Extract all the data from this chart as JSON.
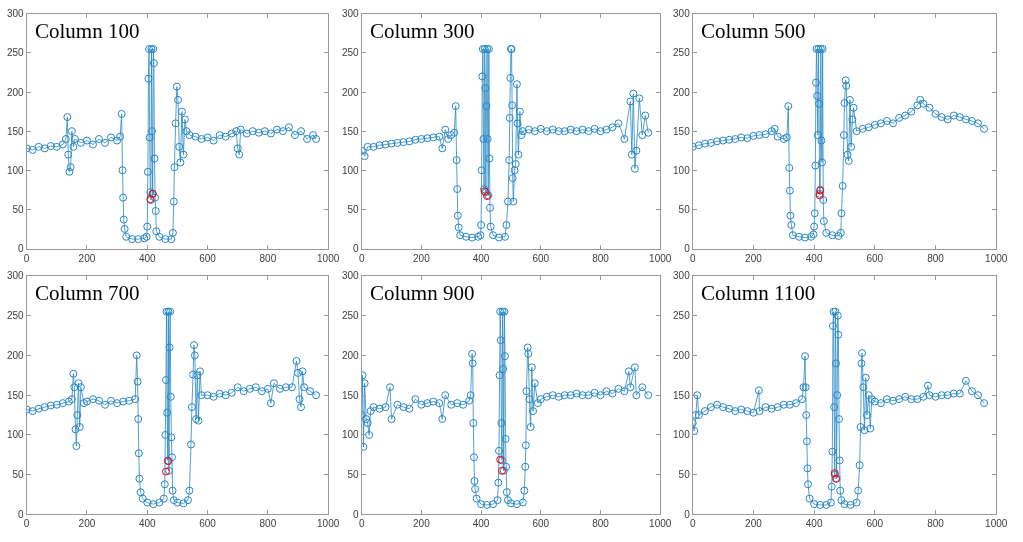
{
  "chart_data": [
    {
      "type": "line",
      "title": "Column 100",
      "xlim": [
        0,
        1000
      ],
      "xticks": [
        0,
        200,
        400,
        600,
        800,
        1000
      ],
      "ylim": [
        0,
        300
      ],
      "yticks": [
        0,
        50,
        100,
        150,
        200,
        250,
        300
      ],
      "marker": "circle",
      "series": [
        {
          "color": "#0072bd",
          "x": [
            0,
            20,
            40,
            60,
            80,
            100,
            120,
            130,
            135,
            138,
            142,
            146,
            150,
            155,
            160,
            180,
            200,
            220,
            240,
            260,
            280,
            300,
            310,
            315,
            318,
            320,
            322,
            325,
            330,
            350,
            370,
            390,
            398,
            400,
            402,
            404,
            406,
            408,
            410,
            412,
            414,
            416,
            418,
            420,
            422,
            424,
            426,
            428,
            430,
            440,
            460,
            480,
            485,
            488,
            490,
            494,
            498,
            502,
            506,
            510,
            515,
            520,
            525,
            530,
            540,
            560,
            580,
            600,
            620,
            640,
            660,
            680,
            695,
            700,
            705,
            710,
            730,
            750,
            770,
            790,
            810,
            830,
            850,
            870,
            890,
            910,
            930,
            950,
            960
          ],
          "values": [
            128,
            126,
            130,
            128,
            131,
            130,
            133,
            140,
            168,
            120,
            98,
            104,
            150,
            130,
            140,
            135,
            138,
            133,
            140,
            135,
            142,
            138,
            143,
            172,
            100,
            65,
            37,
            25,
            15,
            12,
            12,
            13,
            15,
            28,
            98,
            217,
            255,
            142,
            72,
            62,
            255,
            150,
            70,
            255,
            237,
            115,
            65,
            48,
            22,
            15,
            12,
            12,
            20,
            60,
            104,
            160,
            207,
            190,
            130,
            110,
            175,
            120,
            165,
            150,
            145,
            143,
            140,
            142,
            138,
            145,
            143,
            147,
            150,
            128,
            120,
            152,
            147,
            150,
            148,
            150,
            147,
            152,
            150,
            155,
            145,
            150,
            140,
            145,
            140
          ]
        },
        {
          "type": "scatter",
          "color": "#ff0000",
          "x": [
            410,
            418
          ],
          "values": [
            63,
            70
          ]
        }
      ]
    },
    {
      "type": "line",
      "title": "Column 300",
      "xlim": [
        0,
        1000
      ],
      "xticks": [
        0,
        200,
        400,
        600,
        800,
        1000
      ],
      "ylim": [
        0,
        300
      ],
      "yticks": [
        0,
        50,
        100,
        150,
        200,
        250,
        300
      ],
      "marker": "circle",
      "series": [
        {
          "color": "#0072bd",
          "x": [
            0,
            10,
            20,
            40,
            60,
            80,
            100,
            120,
            140,
            160,
            180,
            200,
            220,
            240,
            260,
            270,
            280,
            290,
            300,
            310,
            315,
            318,
            320,
            322,
            325,
            330,
            350,
            370,
            390,
            398,
            400,
            402,
            404,
            406,
            408,
            410,
            412,
            414,
            416,
            418,
            420,
            422,
            424,
            426,
            428,
            430,
            432,
            440,
            460,
            480,
            485,
            490,
            494,
            496,
            498,
            500,
            502,
            504,
            506,
            508,
            512,
            516,
            520,
            522,
            525,
            530,
            535,
            540,
            560,
            580,
            600,
            620,
            640,
            660,
            680,
            700,
            720,
            740,
            760,
            780,
            800,
            820,
            840,
            860,
            880,
            900,
            905,
            910,
            915,
            920,
            930,
            940,
            950,
            960
          ],
          "values": [
            125,
            118,
            130,
            130,
            132,
            133,
            134,
            135,
            136,
            137,
            139,
            140,
            141,
            142,
            143,
            128,
            152,
            140,
            145,
            148,
            182,
            113,
            76,
            42,
            27,
            17,
            15,
            14,
            15,
            17,
            30,
            100,
            220,
            255,
            140,
            76,
            255,
            205,
            72,
            182,
            255,
            140,
            68,
            255,
            115,
            52,
            28,
            17,
            14,
            15,
            30,
            60,
            113,
            167,
            218,
            255,
            255,
            183,
            90,
            60,
            100,
            108,
            210,
            160,
            120,
            175,
            145,
            150,
            152,
            150,
            153,
            150,
            152,
            150,
            150,
            152,
            150,
            152,
            150,
            153,
            150,
            152,
            155,
            160,
            140,
            188,
            120,
            198,
            102,
            125,
            192,
            145,
            170,
            148
          ]
        },
        {
          "type": "scatter",
          "color": "#ff0000",
          "x": [
            412,
            420
          ],
          "values": [
            73,
            67
          ]
        }
      ]
    },
    {
      "type": "line",
      "title": "Column 500",
      "xlim": [
        0,
        1000
      ],
      "xticks": [
        0,
        200,
        400,
        600,
        800,
        1000
      ],
      "ylim": [
        0,
        300
      ],
      "yticks": [
        0,
        50,
        100,
        150,
        200,
        250,
        300
      ],
      "marker": "circle",
      "series": [
        {
          "color": "#0072bd",
          "x": [
            0,
            20,
            40,
            60,
            80,
            100,
            120,
            140,
            160,
            180,
            200,
            220,
            240,
            260,
            270,
            280,
            300,
            310,
            315,
            318,
            320,
            322,
            325,
            330,
            350,
            370,
            390,
            398,
            400,
            402,
            404,
            406,
            408,
            410,
            412,
            414,
            416,
            418,
            420,
            422,
            424,
            426,
            428,
            430,
            432,
            440,
            460,
            480,
            488,
            490,
            494,
            498,
            500,
            504,
            506,
            510,
            514,
            518,
            522,
            526,
            530,
            540,
            560,
            580,
            600,
            620,
            640,
            660,
            680,
            700,
            720,
            740,
            750,
            760,
            780,
            800,
            820,
            840,
            860,
            880,
            900,
            920,
            940,
            960
          ],
          "values": [
            130,
            132,
            134,
            135,
            137,
            138,
            139,
            140,
            142,
            141,
            144,
            145,
            146,
            150,
            153,
            143,
            140,
            142,
            182,
            103,
            74,
            42,
            30,
            17,
            15,
            14,
            15,
            18,
            28,
            45,
            106,
            212,
            255,
            195,
            145,
            255,
            185,
            70,
            75,
            255,
            138,
            110,
            255,
            62,
            35,
            20,
            17,
            16,
            20,
            45,
            80,
            145,
            186,
            215,
            208,
            120,
            112,
            190,
            130,
            165,
            180,
            150,
            153,
            155,
            158,
            160,
            163,
            160,
            167,
            170,
            175,
            183,
            190,
            185,
            180,
            172,
            168,
            165,
            170,
            168,
            165,
            163,
            160,
            153
          ]
        },
        {
          "type": "scatter",
          "color": "#ff0000",
          "x": [
            418,
            420
          ],
          "values": [
            68,
            74
          ]
        }
      ]
    },
    {
      "type": "line",
      "title": "Column 700",
      "xlim": [
        0,
        1000
      ],
      "xticks": [
        0,
        200,
        400,
        600,
        800,
        1000
      ],
      "ylim": [
        0,
        300
      ],
      "yticks": [
        0,
        50,
        100,
        150,
        200,
        250,
        300
      ],
      "marker": "circle",
      "series": [
        {
          "color": "#0072bd",
          "x": [
            0,
            20,
            40,
            60,
            80,
            100,
            120,
            140,
            150,
            155,
            158,
            162,
            165,
            168,
            172,
            176,
            180,
            190,
            200,
            220,
            240,
            260,
            280,
            300,
            320,
            340,
            360,
            365,
            368,
            370,
            372,
            374,
            378,
            385,
            400,
            420,
            440,
            455,
            458,
            460,
            462,
            464,
            466,
            468,
            470,
            472,
            474,
            476,
            478,
            480,
            482,
            484,
            488,
            500,
            520,
            535,
            540,
            545,
            548,
            552,
            555,
            558,
            562,
            566,
            570,
            575,
            580,
            600,
            620,
            640,
            660,
            680,
            700,
            720,
            740,
            760,
            780,
            800,
            810,
            820,
            840,
            860,
            880,
            895,
            900,
            905,
            910,
            915,
            920,
            940,
            960
          ],
          "values": [
            132,
            130,
            133,
            135,
            137,
            138,
            140,
            142,
            145,
            177,
            160,
            107,
            86,
            125,
            165,
            110,
            160,
            140,
            142,
            145,
            143,
            138,
            143,
            140,
            142,
            143,
            145,
            200,
            167,
            120,
            77,
            45,
            28,
            20,
            15,
            13,
            15,
            20,
            38,
            100,
            169,
            255,
            128,
            68,
            255,
            55,
            210,
            255,
            148,
            97,
            72,
            30,
            18,
            15,
            14,
            18,
            30,
            88,
            135,
            176,
            213,
            200,
            120,
            175,
            118,
            180,
            150,
            150,
            148,
            152,
            150,
            153,
            160,
            155,
            158,
            160,
            155,
            158,
            140,
            165,
            158,
            160,
            160,
            193,
            178,
            145,
            135,
            180,
            160,
            155,
            150
          ]
        },
        {
          "type": "scatter",
          "color": "#ff0000",
          "x": [
            462,
            470
          ],
          "values": [
            54,
            67
          ]
        }
      ]
    },
    {
      "type": "line",
      "title": "Column 900",
      "xlim": [
        0,
        1000
      ],
      "xticks": [
        0,
        200,
        400,
        600,
        800,
        1000
      ],
      "ylim": [
        0,
        300
      ],
      "yticks": [
        0,
        50,
        100,
        150,
        200,
        250,
        300
      ],
      "marker": "circle",
      "series": [
        {
          "color": "#0072bd",
          "x": [
            0,
            3,
            6,
            10,
            15,
            20,
            25,
            30,
            40,
            60,
            80,
            95,
            100,
            120,
            140,
            160,
            180,
            200,
            220,
            240,
            260,
            270,
            280,
            300,
            320,
            340,
            360,
            365,
            370,
            372,
            374,
            376,
            378,
            380,
            385,
            400,
            420,
            440,
            455,
            458,
            460,
            462,
            464,
            466,
            468,
            470,
            472,
            474,
            476,
            478,
            480,
            482,
            484,
            486,
            490,
            500,
            520,
            540,
            545,
            548,
            550,
            552,
            556,
            558,
            562,
            566,
            570,
            574,
            580,
            590,
            600,
            620,
            640,
            660,
            680,
            700,
            720,
            740,
            760,
            780,
            800,
            820,
            840,
            860,
            880,
            895,
            900,
            915,
            920,
            940,
            960
          ],
          "values": [
            125,
            175,
            85,
            165,
            120,
            115,
            100,
            130,
            135,
            133,
            135,
            160,
            120,
            138,
            135,
            133,
            145,
            138,
            140,
            142,
            140,
            120,
            150,
            138,
            140,
            138,
            143,
            150,
            202,
            190,
            115,
            72,
            42,
            32,
            20,
            13,
            12,
            13,
            18,
            40,
            80,
            175,
            255,
            219,
            115,
            68,
            255,
            183,
            55,
            255,
            199,
            95,
            60,
            28,
            18,
            14,
            13,
            15,
            30,
            60,
            87,
            155,
            210,
            202,
            145,
            110,
            185,
            130,
            165,
            140,
            145,
            148,
            150,
            148,
            150,
            150,
            152,
            150,
            150,
            153,
            150,
            155,
            152,
            158,
            155,
            180,
            160,
            185,
            150,
            160,
            150
          ]
        },
        {
          "type": "scatter",
          "color": "#ff0000",
          "x": [
            464,
            470
          ],
          "values": [
            69,
            55
          ]
        }
      ]
    },
    {
      "type": "line",
      "title": "Column 1100",
      "xlim": [
        0,
        1000
      ],
      "xticks": [
        0,
        200,
        400,
        600,
        800,
        1000
      ],
      "ylim": [
        0,
        300
      ],
      "yticks": [
        0,
        50,
        100,
        150,
        200,
        250,
        300
      ],
      "marker": "circle",
      "series": [
        {
          "color": "#0072bd",
          "x": [
            0,
            5,
            10,
            15,
            20,
            40,
            60,
            80,
            100,
            120,
            140,
            160,
            180,
            200,
            218,
            220,
            240,
            260,
            280,
            300,
            320,
            340,
            360,
            365,
            370,
            372,
            374,
            376,
            378,
            380,
            385,
            400,
            420,
            440,
            455,
            458,
            460,
            462,
            464,
            466,
            468,
            470,
            472,
            474,
            476,
            478,
            480,
            482,
            484,
            486,
            490,
            500,
            520,
            540,
            545,
            550,
            553,
            556,
            558,
            562,
            566,
            570,
            574,
            580,
            585,
            590,
            600,
            620,
            640,
            660,
            680,
            700,
            720,
            740,
            760,
            775,
            780,
            800,
            820,
            840,
            860,
            880,
            900,
            920,
            940,
            960
          ],
          "values": [
            115,
            105,
            125,
            150,
            125,
            130,
            135,
            138,
            135,
            133,
            130,
            132,
            130,
            128,
            156,
            130,
            135,
            133,
            135,
            138,
            138,
            140,
            145,
            160,
            199,
            160,
            125,
            92,
            58,
            38,
            20,
            13,
            12,
            12,
            15,
            35,
            79,
            237,
            255,
            135,
            50,
            255,
            190,
            45,
            150,
            250,
            226,
            120,
            68,
            30,
            18,
            13,
            12,
            15,
            30,
            62,
            110,
            190,
            203,
            160,
            106,
            172,
            125,
            150,
            108,
            145,
            142,
            140,
            145,
            143,
            145,
            148,
            145,
            145,
            148,
            162,
            150,
            148,
            150,
            150,
            152,
            152,
            168,
            155,
            150,
            140
          ]
        },
        {
          "type": "scatter",
          "color": "#ff0000",
          "x": [
            468,
            472
          ],
          "values": [
            52,
            45
          ]
        }
      ]
    }
  ]
}
